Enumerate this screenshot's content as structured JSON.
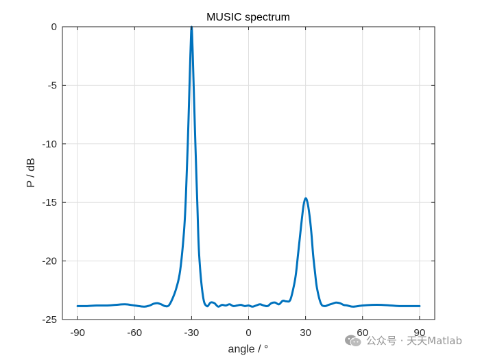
{
  "chart_data": {
    "type": "line",
    "title": "MUSIC spectrum",
    "xlabel": "angle / °",
    "ylabel": "P / dB",
    "xlim": [
      -98,
      98
    ],
    "ylim": [
      -25,
      0
    ],
    "x_ticks": [
      -90,
      -60,
      -30,
      0,
      30,
      60,
      90
    ],
    "x_tick_labels": [
      "-90",
      "-60",
      "-30",
      "0",
      "30",
      "60",
      "90"
    ],
    "y_ticks": [
      0,
      -5,
      -10,
      -15,
      -20,
      -25
    ],
    "y_tick_labels": [
      "0",
      "-5",
      "-10",
      "-15",
      "-20",
      "-25"
    ],
    "grid": true,
    "line_color": "#0072BD",
    "series": [
      {
        "x": [
          -90,
          -85,
          -80,
          -75,
          -70,
          -65,
          -60,
          -55,
          -52,
          -50,
          -48,
          -46,
          -44,
          -42,
          -40,
          -38,
          -36,
          -34,
          -33,
          -32,
          -31,
          -30.5,
          -30,
          -29.5,
          -29,
          -28,
          -27,
          -26,
          -24,
          -22,
          -20,
          -18,
          -16,
          -14,
          -12,
          -10,
          -8,
          -6,
          -4,
          -2,
          0,
          2,
          4,
          6,
          8,
          10,
          12,
          14,
          16,
          18,
          20,
          22,
          24,
          25,
          26,
          27,
          28,
          29,
          30,
          31,
          32,
          33,
          34,
          35,
          36,
          38,
          40,
          42,
          44,
          46,
          48,
          50,
          52,
          55,
          60,
          65,
          70,
          75,
          80,
          85,
          90
        ],
        "y": [
          -23.85,
          -23.85,
          -23.8,
          -23.8,
          -23.75,
          -23.7,
          -23.8,
          -23.9,
          -23.8,
          -23.65,
          -23.6,
          -23.7,
          -23.85,
          -23.8,
          -23.2,
          -22.3,
          -20.8,
          -17.5,
          -14.5,
          -10,
          -4.5,
          -1.8,
          0,
          -1.8,
          -4.5,
          -10,
          -15,
          -19.5,
          -23,
          -23.85,
          -23.55,
          -23.6,
          -23.9,
          -23.75,
          -23.8,
          -23.7,
          -23.85,
          -23.8,
          -23.75,
          -23.85,
          -23.8,
          -23.9,
          -23.8,
          -23.7,
          -23.8,
          -23.85,
          -23.6,
          -23.55,
          -23.7,
          -23.4,
          -23.45,
          -23.3,
          -22,
          -21,
          -19.5,
          -18,
          -16.5,
          -15.2,
          -14.65,
          -15,
          -16,
          -17.5,
          -19.5,
          -21,
          -22.3,
          -23.6,
          -23.85,
          -23.75,
          -23.65,
          -23.55,
          -23.6,
          -23.75,
          -23.8,
          -23.9,
          -23.8,
          -23.75,
          -23.75,
          -23.8,
          -23.85,
          -23.85,
          -23.85
        ]
      }
    ]
  },
  "watermark": {
    "text": "公众号 · 天天Matlab",
    "icon": "wechat-icon"
  }
}
